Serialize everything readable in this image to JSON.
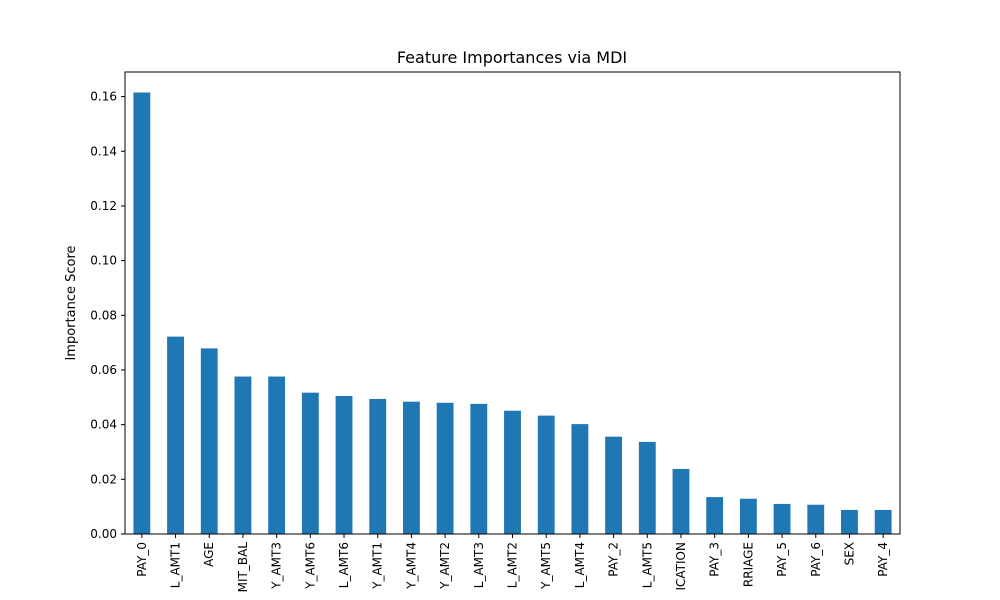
{
  "chart_data": {
    "type": "bar",
    "title": "Feature Importances via MDI",
    "xlabel": "",
    "ylabel": "Importance Score",
    "ylim": [
      0,
      0.169
    ],
    "yticks": [
      0.0,
      0.02,
      0.04,
      0.06,
      0.08,
      0.1,
      0.12,
      0.14,
      0.16
    ],
    "ytick_labels": [
      "0.00",
      "0.02",
      "0.04",
      "0.06",
      "0.08",
      "0.10",
      "0.12",
      "0.14",
      "0.16"
    ],
    "categories": [
      "PAY_0",
      "L_AMT1",
      "AGE",
      "MIT_BAL",
      "Y_AMT3",
      "Y_AMT6",
      "L_AMT6",
      "Y_AMT1",
      "Y_AMT4",
      "Y_AMT2",
      "L_AMT3",
      "L_AMT2",
      "Y_AMT5",
      "L_AMT4",
      "PAY_2",
      "L_AMT5",
      "ICATION",
      "PAY_3",
      "RRIAGE",
      "PAY_5",
      "PAY_6",
      "SEX",
      "PAY_4"
    ],
    "values": [
      0.1615,
      0.0722,
      0.0679,
      0.0576,
      0.0576,
      0.0517,
      0.0505,
      0.0494,
      0.0484,
      0.048,
      0.0476,
      0.0451,
      0.0433,
      0.0402,
      0.0356,
      0.0337,
      0.0238,
      0.0135,
      0.0129,
      0.011,
      0.0107,
      0.0088,
      0.0088
    ],
    "bar_color": "#1f77b4",
    "grid": false,
    "legend": "none"
  }
}
